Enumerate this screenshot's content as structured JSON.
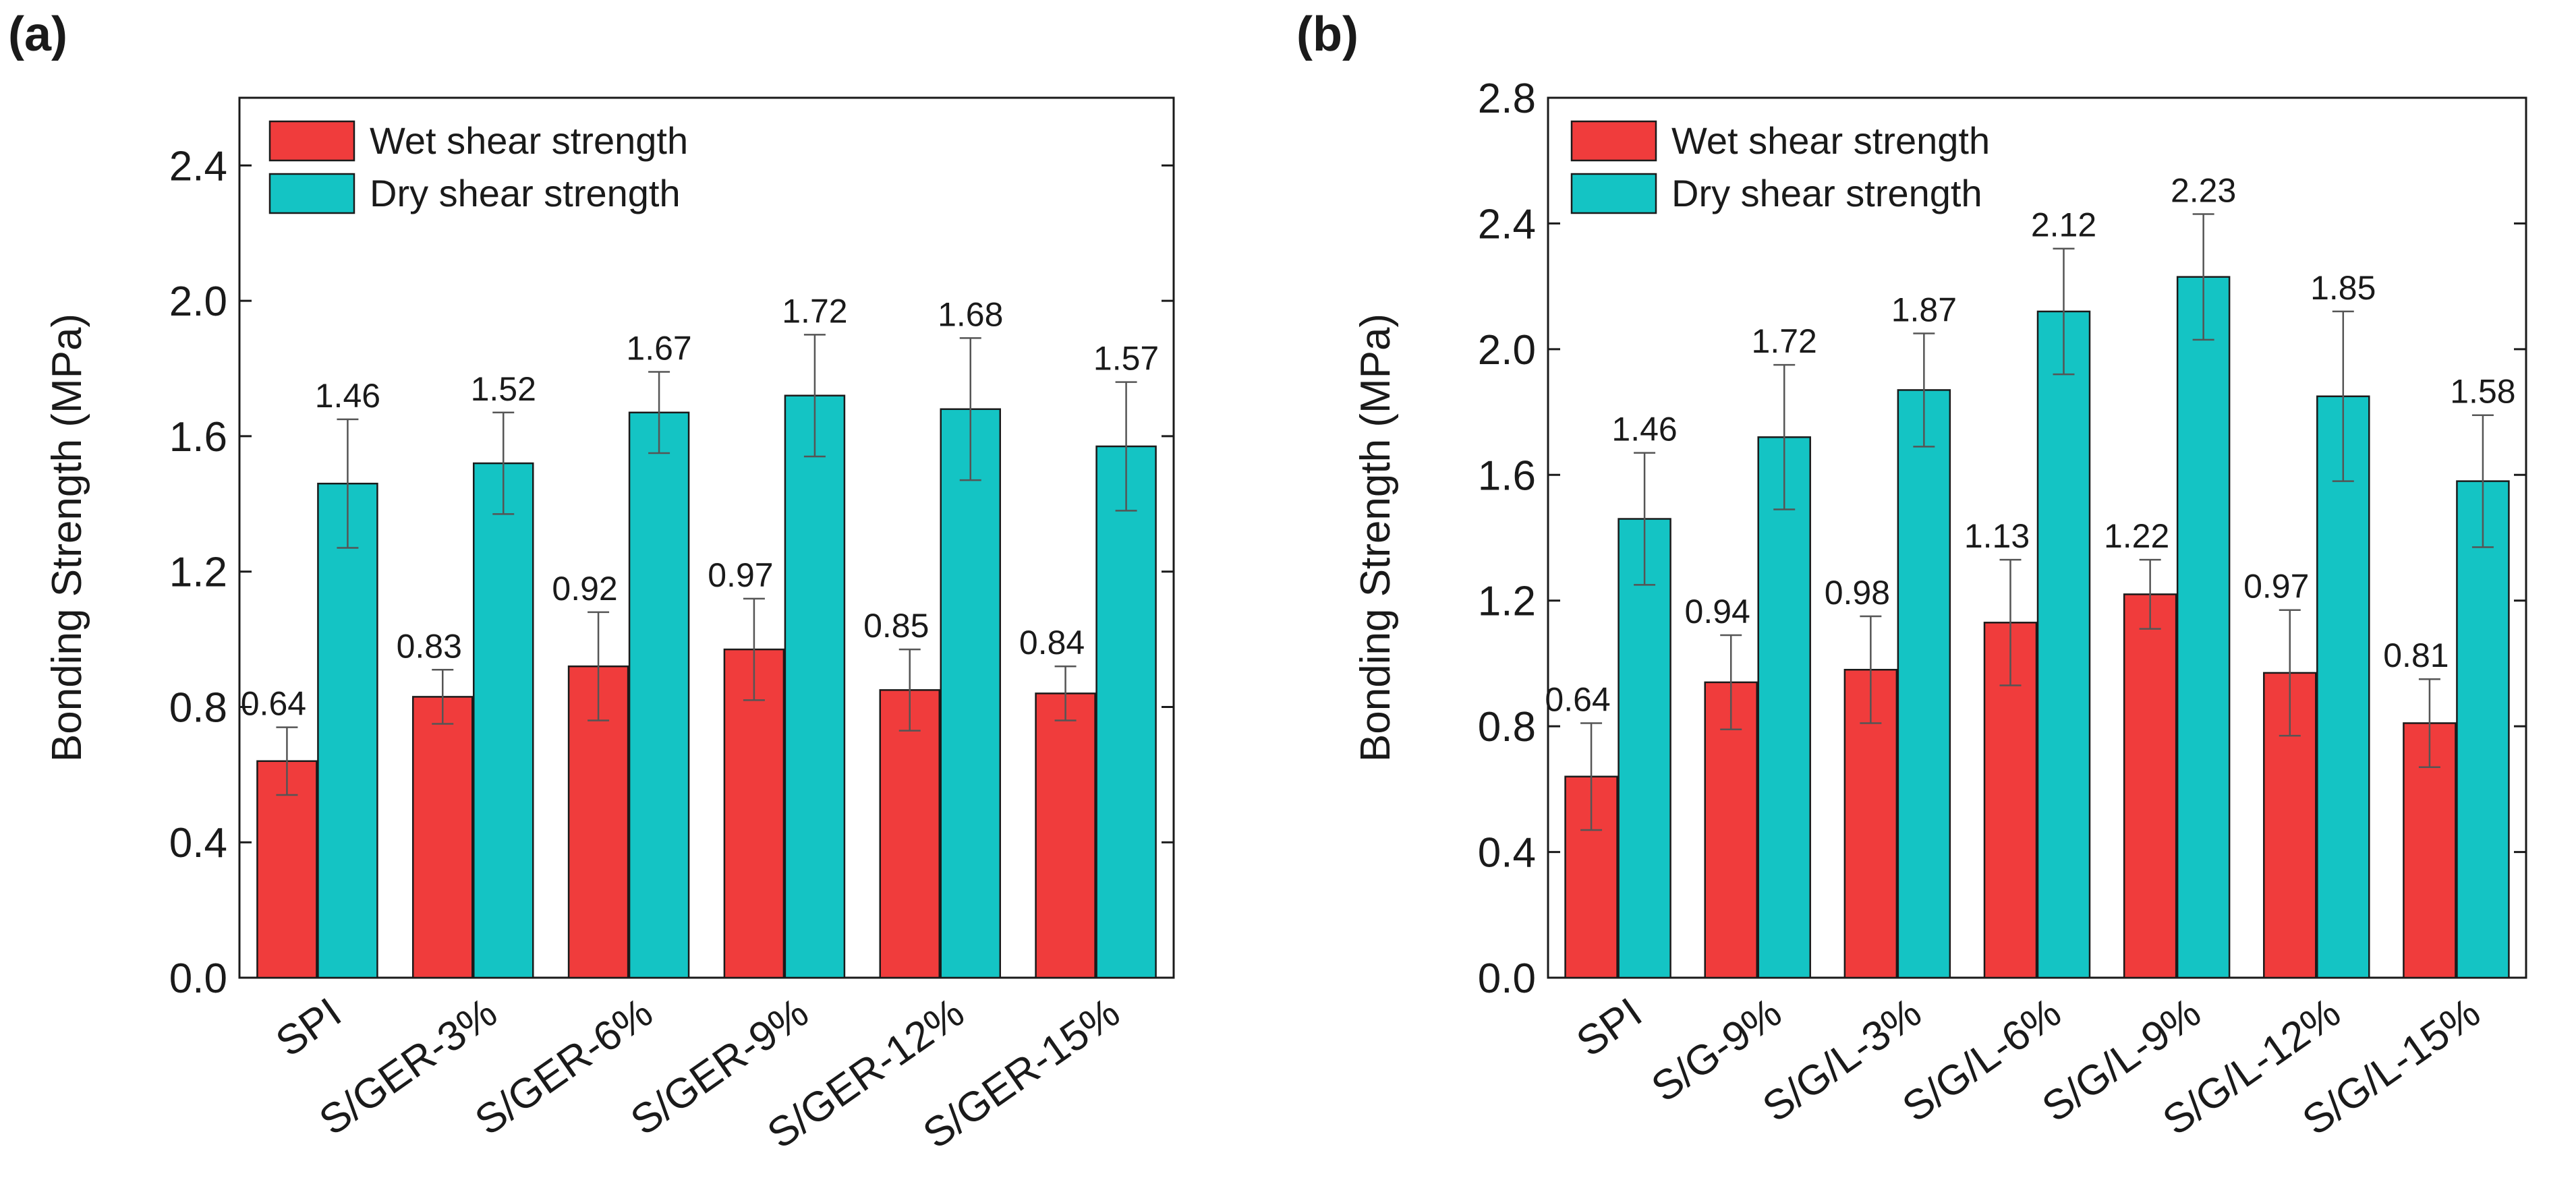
{
  "chart_data": [
    {
      "type": "bar",
      "panel_label": "(a)",
      "title": "",
      "xlabel": "",
      "ylabel": "Bonding Strength (MPa)",
      "ylim": [
        0,
        2.6
      ],
      "yticks": [
        "0.0",
        "0.4",
        "0.8",
        "1.2",
        "1.6",
        "2.0",
        "2.4"
      ],
      "ytick_values": [
        0,
        0.4,
        0.8,
        1.2,
        1.6,
        2.0,
        2.4
      ],
      "legend_position": "top-left",
      "categories": [
        "SPI",
        "S/GER-3%",
        "S/GER-6%",
        "S/GER-9%",
        "S/GER-12%",
        "S/GER-15%"
      ],
      "series": [
        {
          "name": "Wet shear strength",
          "color": "#f03c3c",
          "values": [
            0.64,
            0.83,
            0.92,
            0.97,
            0.85,
            0.84
          ],
          "labels": [
            "0.64",
            "0.83",
            "0.92",
            "0.97",
            "0.85",
            "0.84"
          ],
          "errors": [
            0.1,
            0.08,
            0.16,
            0.15,
            0.12,
            0.08
          ]
        },
        {
          "name": "Dry shear strength",
          "color": "#14c4c4",
          "values": [
            1.46,
            1.52,
            1.67,
            1.72,
            1.68,
            1.57
          ],
          "labels": [
            "1.46",
            "1.52",
            "1.67",
            "1.72",
            "1.68",
            "1.57"
          ],
          "errors": [
            0.19,
            0.15,
            0.12,
            0.18,
            0.21,
            0.19
          ]
        }
      ]
    },
    {
      "type": "bar",
      "panel_label": "(b)",
      "title": "",
      "xlabel": "",
      "ylabel": "Bonding Strength (MPa)",
      "ylim": [
        0,
        2.8
      ],
      "yticks": [
        "0.0",
        "0.4",
        "0.8",
        "1.2",
        "1.6",
        "2.0",
        "2.4",
        "2.8"
      ],
      "ytick_values": [
        0,
        0.4,
        0.8,
        1.2,
        1.6,
        2.0,
        2.4,
        2.8
      ],
      "legend_position": "top-left",
      "categories": [
        "SPI",
        "S/G-9%",
        "S/G/L-3%",
        "S/G/L-6%",
        "S/G/L-9%",
        "S/G/L-12%",
        "S/G/L-15%"
      ],
      "series": [
        {
          "name": "Wet shear strength",
          "color": "#f03c3c",
          "values": [
            0.64,
            0.94,
            0.98,
            1.13,
            1.22,
            0.97,
            0.81
          ],
          "labels": [
            "0.64",
            "0.94",
            "0.98",
            "1.13",
            "1.22",
            "0.97",
            "0.81"
          ],
          "errors": [
            0.17,
            0.15,
            0.17,
            0.2,
            0.11,
            0.2,
            0.14
          ]
        },
        {
          "name": "Dry shear strength",
          "color": "#14c4c4",
          "values": [
            1.46,
            1.72,
            1.87,
            2.12,
            2.23,
            1.85,
            1.58
          ],
          "labels": [
            "1.46",
            "1.72",
            "1.87",
            "2.12",
            "2.23",
            "1.85",
            "1.58"
          ],
          "errors": [
            0.21,
            0.23,
            0.18,
            0.2,
            0.2,
            0.27,
            0.21
          ]
        }
      ]
    }
  ]
}
